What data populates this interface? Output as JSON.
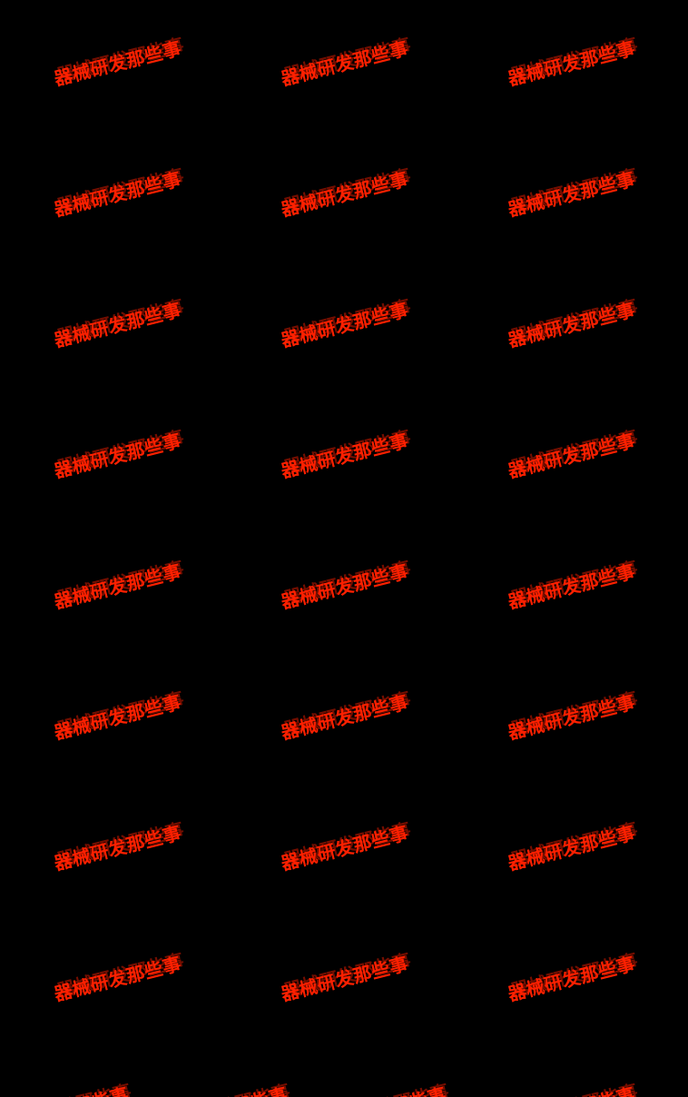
{
  "screen": {
    "background_color": "#000000",
    "content": "black blank frame"
  },
  "watermark": {
    "text": "器械研发那些事",
    "color": "#ff2000",
    "rotation_deg": -14,
    "tiled": true,
    "full_rows": 8,
    "cols_per_row": 3,
    "partial_bottom_row": true
  }
}
